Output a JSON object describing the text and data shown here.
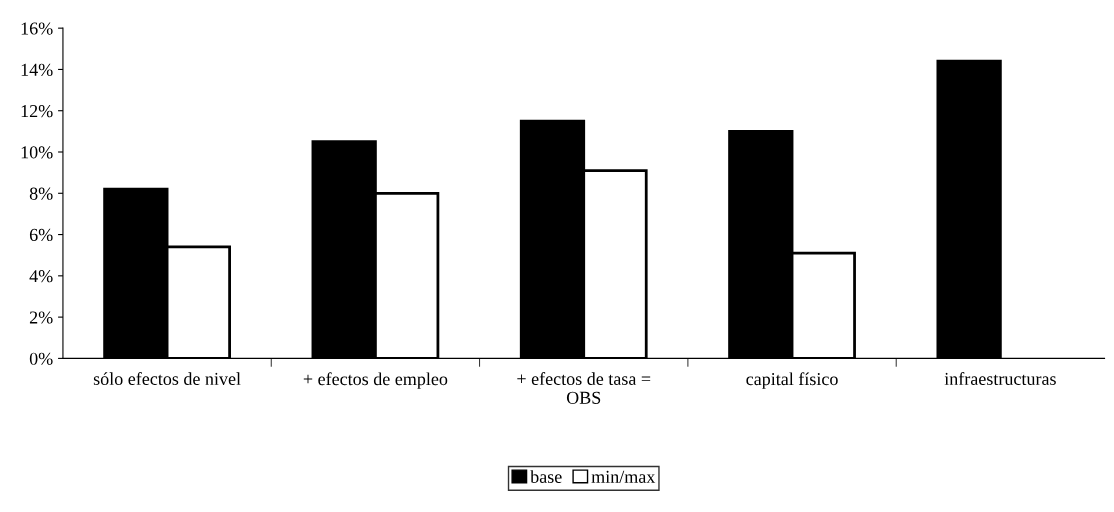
{
  "chart_data": {
    "type": "bar",
    "categories": [
      "sólo efectos de nivel",
      "+ efectos de empleo",
      "+ efectos de tasa =\nOBS",
      "capital físico",
      "infraestructuras"
    ],
    "series": [
      {
        "name": "base",
        "color": "#000000",
        "values": [
          8.2,
          10.5,
          11.5,
          11.0,
          14.4
        ]
      },
      {
        "name": "min/max",
        "color": "#ffffff",
        "values": [
          5.4,
          8.0,
          9.1,
          5.1,
          null
        ]
      }
    ],
    "ylim": [
      0,
      16
    ],
    "yticks": [
      {
        "value": 0,
        "label": "0%"
      },
      {
        "value": 2,
        "label": "2%"
      },
      {
        "value": 4,
        "label": "4%"
      },
      {
        "value": 6,
        "label": "6%"
      },
      {
        "value": 8,
        "label": "8%"
      },
      {
        "value": 10,
        "label": "10%"
      },
      {
        "value": 12,
        "label": "12%"
      },
      {
        "value": 14,
        "label": "14%"
      },
      {
        "value": 16,
        "label": "16%"
      }
    ],
    "grid": false,
    "legend": "bottom"
  }
}
